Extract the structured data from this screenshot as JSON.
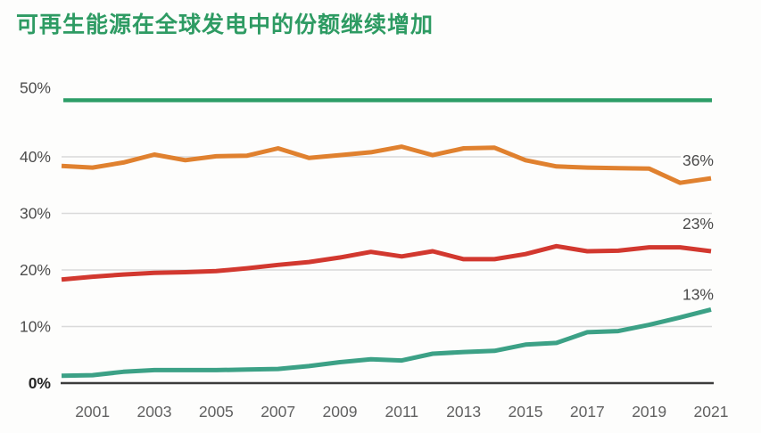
{
  "title": "可再生能源在全球发电中的份额继续增加",
  "colors": {
    "title_green": "#2E9B63",
    "top_rule_green": "#2E9E68",
    "orange_line": "#E0812F",
    "red_line": "#D2382F",
    "teal_line": "#3CA186",
    "gridline_gray": "#DADADA",
    "axis_dark": "#3C3C3C",
    "y_label_gray": "#4D4D4D",
    "x_label_gray": "#616161",
    "value_label_gray": "#4A4A4A"
  },
  "chart_data": {
    "type": "line",
    "title": "可再生能源在全球发电中的份额继续增加",
    "x": [
      2000,
      2001,
      2002,
      2003,
      2004,
      2005,
      2006,
      2007,
      2008,
      2009,
      2010,
      2011,
      2012,
      2013,
      2014,
      2015,
      2016,
      2017,
      2018,
      2019,
      2020,
      2021
    ],
    "x_tick_labels": [
      "2001",
      "2003",
      "2005",
      "2007",
      "2009",
      "2011",
      "2013",
      "2015",
      "2017",
      "2019",
      "2021"
    ],
    "y_tick_labels": [
      "0%",
      "10%",
      "20%",
      "30%",
      "40%",
      "50%"
    ],
    "y_ticks": [
      0,
      10,
      20,
      30,
      40,
      50
    ],
    "ylim": [
      0,
      50
    ],
    "grid": true,
    "legend_position": "none",
    "series": [
      {
        "name": "orange-top-line",
        "color_key": "orange_line",
        "end_label": "36%",
        "values": [
          38.4,
          38.1,
          39.0,
          40.4,
          39.4,
          40.1,
          40.2,
          41.5,
          39.8,
          40.3,
          40.8,
          41.8,
          40.3,
          41.5,
          41.6,
          39.4,
          38.3,
          38.1,
          38.0,
          37.9,
          35.4,
          36.2
        ]
      },
      {
        "name": "red-middle-line",
        "color_key": "red_line",
        "end_label": "23%",
        "values": [
          18.3,
          18.8,
          19.2,
          19.5,
          19.6,
          19.8,
          20.3,
          20.9,
          21.4,
          22.2,
          23.2,
          22.4,
          23.3,
          21.9,
          21.9,
          22.8,
          24.2,
          23.3,
          23.4,
          24.0,
          24.0,
          23.3
        ]
      },
      {
        "name": "teal-bottom-line",
        "color_key": "teal_line",
        "end_label": "13%",
        "values": [
          1.3,
          1.4,
          2.0,
          2.3,
          2.3,
          2.3,
          2.4,
          2.5,
          3.0,
          3.7,
          4.2,
          4.0,
          5.2,
          5.5,
          5.7,
          6.8,
          7.1,
          9.0,
          9.2,
          10.3,
          11.6,
          13.0
        ]
      }
    ]
  }
}
